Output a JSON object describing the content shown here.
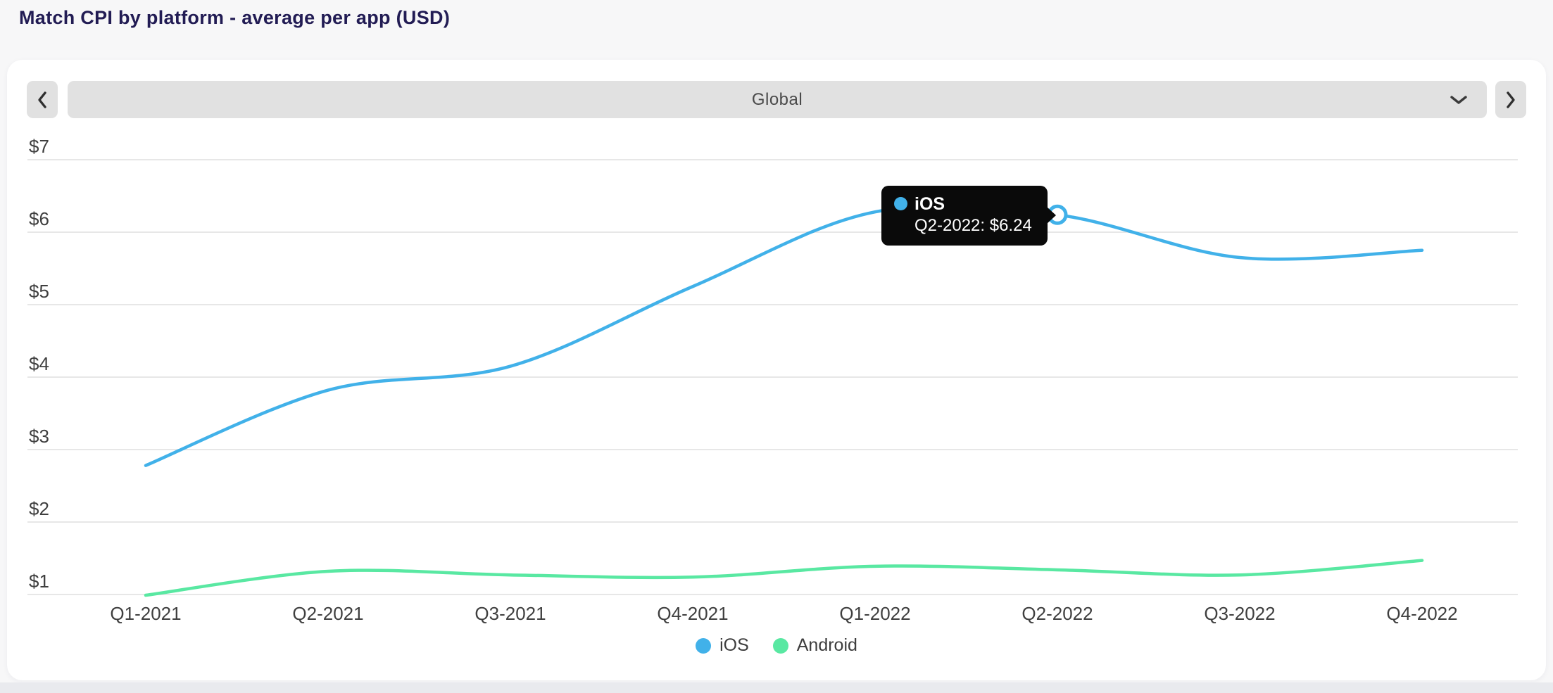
{
  "page": {
    "title": "Match CPI by platform - average per app (USD)"
  },
  "controls": {
    "prev_icon": "chevron-left",
    "next_icon": "chevron-right",
    "region_selector": {
      "value": "Global",
      "dropdown_icon": "chevron-down"
    }
  },
  "chart_data": {
    "type": "line",
    "title": "Match CPI by platform - average per app (USD)",
    "categories": [
      "Q1-2021",
      "Q2-2021",
      "Q3-2021",
      "Q4-2021",
      "Q1-2022",
      "Q2-2022",
      "Q3-2022",
      "Q4-2022"
    ],
    "series": [
      {
        "name": "iOS",
        "color": "#41b1e9",
        "values": [
          2.78,
          3.82,
          4.15,
          5.25,
          6.28,
          6.24,
          5.65,
          5.75
        ]
      },
      {
        "name": "Android",
        "color": "#59e8a2",
        "values": [
          0.99,
          1.32,
          1.27,
          1.24,
          1.39,
          1.34,
          1.27,
          1.47
        ]
      }
    ],
    "ylim": [
      1,
      7
    ],
    "ytick_labels": [
      "$1",
      "$2",
      "$3",
      "$4",
      "$5",
      "$6",
      "$7"
    ],
    "xlabel": "",
    "ylabel": "",
    "grid": "horizontal",
    "line_smoothing": true,
    "legend_position": "bottom",
    "highlight": {
      "series": "iOS",
      "category": "Q2-2022",
      "value": 6.24
    }
  },
  "tooltip": {
    "series": "iOS",
    "text": "Q2-2022: $6.24"
  },
  "legend": {
    "items": [
      {
        "label": "iOS",
        "color": "#41b1e9"
      },
      {
        "label": "Android",
        "color": "#59e8a2"
      }
    ]
  },
  "colors": {
    "page_bg": "#f7f7f8",
    "card_bg": "#ffffff",
    "title_text": "#221c54",
    "control_bg": "#e1e1e1",
    "control_text": "#4a4a4a",
    "gridline": "#e7e7e7",
    "axis_text": "#3f3f3f",
    "tooltip_bg": "#0a0a0a",
    "footer_strip": "#e9eaee"
  }
}
